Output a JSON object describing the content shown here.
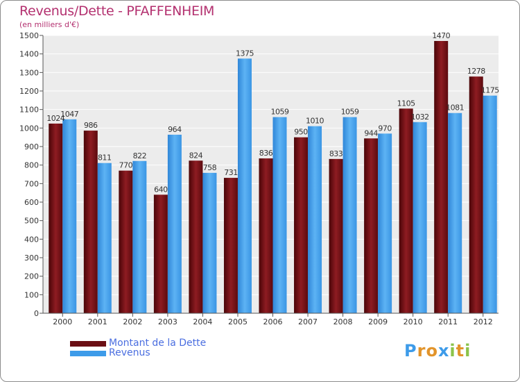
{
  "header": {
    "title": "Revenus/Dette - PFAFFENHEIM",
    "subtitle": "(en milliers d'€)"
  },
  "colors": {
    "dette": "#6b0f14",
    "revenus": "#3d9be9",
    "title": "#b3306f",
    "legend_text": "#4a6ee0"
  },
  "legend": {
    "items": [
      {
        "label": "Montant de la Dette",
        "color": "#6b0f14"
      },
      {
        "label": "Revenus",
        "color": "#3d9be9"
      }
    ]
  },
  "logo": {
    "text": "Proxiti"
  },
  "chart_data": {
    "type": "bar",
    "categories": [
      "2000",
      "2001",
      "2002",
      "2003",
      "2004",
      "2005",
      "2006",
      "2007",
      "2008",
      "2009",
      "2010",
      "2011",
      "2012"
    ],
    "series": [
      {
        "name": "Montant de la Dette",
        "values": [
          1024,
          986,
          770,
          640,
          824,
          731,
          836,
          950,
          833,
          944,
          1105,
          1470,
          1278
        ]
      },
      {
        "name": "Revenus",
        "values": [
          1047,
          811,
          822,
          964,
          758,
          1375,
          1059,
          1010,
          1059,
          970,
          1032,
          1081,
          1175
        ]
      }
    ],
    "ylim": [
      0,
      1500
    ],
    "yticks": [
      0,
      100,
      200,
      300,
      400,
      500,
      600,
      700,
      800,
      900,
      1000,
      1100,
      1200,
      1300,
      1400,
      1500
    ],
    "grid": true,
    "legend_position": "bottom-left"
  }
}
